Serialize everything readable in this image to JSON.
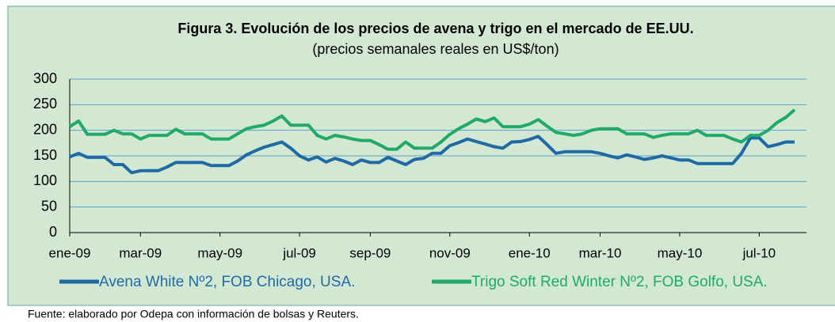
{
  "chart_data": {
    "type": "line",
    "title": "Figura 3. Evolución de los precios de avena y trigo en el mercado de EE.UU.",
    "subtitle": "(precios semanales reales en US$/ton)",
    "source": "Fuente: elaborado por Odepa con información de bolsas y Reuters.",
    "categories": [
      "ene-09",
      null,
      null,
      null,
      null,
      null,
      null,
      null,
      "mar-09",
      null,
      null,
      null,
      null,
      null,
      null,
      null,
      null,
      "may-09",
      null,
      null,
      null,
      null,
      null,
      null,
      null,
      null,
      "jul-09",
      null,
      null,
      null,
      null,
      null,
      null,
      null,
      "sep-09",
      null,
      null,
      null,
      null,
      null,
      null,
      null,
      null,
      "nov-09",
      null,
      null,
      null,
      null,
      null,
      null,
      null,
      null,
      "ene-10",
      null,
      null,
      null,
      null,
      null,
      null,
      null,
      "mar-10",
      null,
      null,
      null,
      null,
      null,
      null,
      null,
      null,
      "may-10",
      null,
      null,
      null,
      null,
      null,
      null,
      null,
      null,
      "jul-10",
      null,
      null,
      null,
      null
    ],
    "series": [
      {
        "name": "Avena White Nº2, FOB Chicago, USA.",
        "color": "#1f6aa5",
        "values": [
          148,
          155,
          147,
          147,
          147,
          133,
          133,
          117,
          121,
          121,
          121,
          128,
          137,
          137,
          137,
          137,
          131,
          131,
          131,
          140,
          152,
          160,
          167,
          172,
          177,
          165,
          150,
          142,
          148,
          138,
          145,
          140,
          133,
          142,
          137,
          137,
          147,
          140,
          133,
          143,
          145,
          155,
          155,
          170,
          176,
          183,
          178,
          173,
          168,
          165,
          177,
          178,
          182,
          188,
          172,
          155,
          158,
          158,
          158,
          158,
          155,
          150,
          146,
          152,
          148,
          143,
          146,
          150,
          146,
          142,
          142,
          135,
          135,
          135,
          135,
          135,
          155,
          185,
          185,
          168,
          172,
          177,
          177
        ]
      },
      {
        "name": "Trigo Soft Red Winter Nº2, FOB Golfo, USA.",
        "color": "#20a96b",
        "values": [
          207,
          218,
          192,
          192,
          192,
          200,
          193,
          193,
          183,
          190,
          190,
          190,
          202,
          193,
          193,
          193,
          183,
          183,
          183,
          193,
          203,
          207,
          210,
          218,
          228,
          210,
          210,
          210,
          190,
          183,
          190,
          187,
          183,
          180,
          180,
          172,
          163,
          163,
          177,
          165,
          165,
          165,
          177,
          192,
          203,
          212,
          222,
          217,
          224,
          207,
          207,
          207,
          212,
          221,
          208,
          196,
          193,
          190,
          193,
          200,
          203,
          203,
          203,
          193,
          193,
          193,
          186,
          190,
          193,
          193,
          193,
          200,
          190,
          190,
          190,
          183,
          177,
          190,
          190,
          200,
          215,
          225,
          240
        ]
      }
    ],
    "ylim": [
      0,
      300
    ],
    "yticks": [
      0,
      50,
      100,
      150,
      200,
      250,
      300
    ],
    "grid": true
  }
}
